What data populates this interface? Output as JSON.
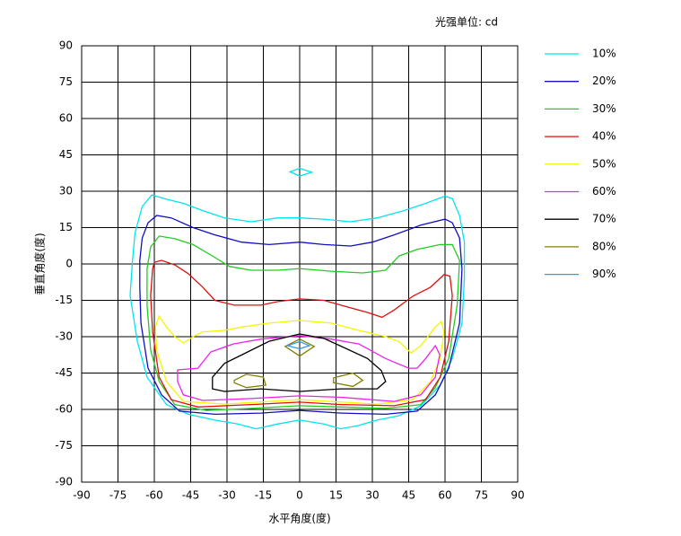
{
  "chart_data": {
    "type": "contour",
    "title": "光强单位: cd",
    "xlabel": "水平角度(度)",
    "ylabel": "垂直角度(度)",
    "xlim": [
      -90,
      90
    ],
    "ylim": [
      -90,
      90
    ],
    "xticks": [
      -90,
      -75,
      -60,
      -45,
      -30,
      -15,
      0,
      15,
      30,
      45,
      60,
      75,
      90
    ],
    "yticks": [
      -90,
      -75,
      -60,
      -45,
      -30,
      -15,
      0,
      15,
      30,
      45,
      60,
      75,
      90
    ],
    "grid": true,
    "legend": "right",
    "series": [
      {
        "name": "10%",
        "color": "#00e5ee",
        "x": [
          -69,
          -68,
          -65,
          -61,
          -55,
          -48,
          -40,
          -31,
          -20,
          -9,
          0,
          10,
          21,
          32,
          43,
          52,
          60,
          63,
          66,
          68,
          68,
          67,
          63,
          58,
          50,
          41,
          32,
          24,
          17,
          10,
          0,
          -9,
          -18,
          -25.5,
          -35,
          -46,
          -55,
          -63,
          -67,
          -70,
          null,
          -4,
          0,
          5,
          0
        ],
        "values": [
          1.5,
          12.6,
          23.7,
          28.5,
          26.7,
          25,
          22,
          19,
          17.4,
          19,
          19,
          18.5,
          17.4,
          19,
          22,
          25,
          28,
          27,
          20,
          9,
          -6,
          -24.4,
          -39,
          -50,
          -58.5,
          -62.6,
          -64.4,
          -66.7,
          -68,
          -66,
          -64.4,
          -66,
          -68,
          -66,
          -64.4,
          -62,
          -58,
          -46.7,
          -32,
          -13,
          null,
          38,
          39.5,
          37.8,
          36.3
        ]
      },
      {
        "name": "20%",
        "color": "#1010c0",
        "x": [
          -66,
          -65,
          -62.6,
          -59,
          -53,
          -44,
          -35,
          -24,
          -12.6,
          0,
          10,
          21,
          30,
          39,
          50,
          60,
          63,
          66,
          67,
          66,
          61.5,
          56,
          48.5,
          35.5,
          17,
          0,
          -16,
          -35,
          -49.6,
          -57,
          -62.6,
          -65.5,
          -66
        ],
        "values": [
          1.5,
          10.7,
          17,
          20,
          19,
          15,
          12,
          9,
          8,
          9,
          8,
          7.4,
          9,
          12,
          16,
          18.5,
          17,
          10.7,
          -2,
          -24.4,
          -43,
          -54,
          -60.7,
          -62,
          -61.5,
          -60.4,
          -61.5,
          -62,
          -60.7,
          -54,
          -43,
          -24.4,
          -9.6
        ]
      },
      {
        "name": "30%",
        "color": "#22cc22",
        "x": [
          -63,
          -61.5,
          -58,
          -51.5,
          -44,
          -36.7,
          -29,
          -20,
          -9,
          0,
          13,
          26,
          35.5,
          41,
          48.5,
          58,
          63,
          66,
          65,
          61.5,
          56,
          50,
          35.5,
          17,
          0,
          -20,
          -38.5,
          -51.5,
          -58,
          -61.5,
          -63
        ],
        "values": [
          -2,
          7,
          11.5,
          10.4,
          8,
          3.7,
          -1,
          -2.6,
          -2.6,
          -1.9,
          -3,
          -3.7,
          -2.6,
          3.3,
          6,
          8,
          8,
          1.5,
          -17,
          -39,
          -51,
          -58,
          -59.6,
          -59,
          -58.5,
          -59.6,
          -60.4,
          -58,
          -48.5,
          -35.5,
          -17
        ]
      },
      {
        "name": "40%",
        "color": "#dd1111",
        "x": [
          -60.7,
          -60,
          -57,
          -51.5,
          -46,
          -40,
          -35,
          -27,
          -16,
          -9,
          0,
          10,
          17,
          28,
          34,
          39,
          46.7,
          54,
          59.6,
          62,
          63,
          61.5,
          58,
          52,
          39,
          17,
          0,
          -20,
          -42,
          -53,
          -58,
          -60.7,
          -61.5
        ],
        "values": [
          -2,
          0.7,
          1.5,
          -0.4,
          -4,
          -9.6,
          -15,
          -17,
          -17,
          -15.5,
          -14.4,
          -15,
          -17,
          -20,
          -22,
          -19,
          -13.3,
          -9.6,
          -4.4,
          -5,
          -13,
          -32,
          -46.7,
          -56,
          -58.5,
          -58,
          -57,
          -58,
          -59,
          -56,
          -46.7,
          -28,
          -13
        ]
      },
      {
        "name": "50%",
        "color": "#f5f500",
        "x": [
          -58,
          -55,
          -51.5,
          -48,
          -44,
          -40,
          -31,
          -23.7,
          -12.6,
          0,
          13,
          24.4,
          35.5,
          41,
          46,
          50,
          56,
          58.5,
          59.6,
          58,
          54,
          46.7,
          32,
          0,
          -31,
          -48,
          -55,
          -59,
          -59.6
        ],
        "values": [
          -21.5,
          -26,
          -30,
          -32.6,
          -30,
          -28,
          -27.4,
          -26,
          -24.4,
          -23.3,
          -24.4,
          -27.4,
          -30,
          -32,
          -36.7,
          -33.7,
          -26,
          -23.7,
          -28,
          -39,
          -48.5,
          -56,
          -57.8,
          -56,
          -57.8,
          -56.7,
          -48.5,
          -35.5,
          -26
        ]
      },
      {
        "name": "60%",
        "color": "#ee22ee",
        "x": [
          -50.4,
          -42,
          -36.7,
          -27.4,
          -16,
          0,
          13,
          24.4,
          35.5,
          45,
          48.5,
          52,
          56,
          57.8,
          56,
          50,
          39,
          17,
          0,
          -20,
          -40,
          -48,
          -50.4
        ],
        "values": [
          -43.7,
          -43,
          -36.3,
          -33,
          -31,
          -29.6,
          -31,
          -33,
          -39,
          -43,
          -43,
          -39,
          -33.7,
          -37.4,
          -46.7,
          -54,
          -56.7,
          -55,
          -54.4,
          -55.5,
          -56.3,
          -54,
          -48.5
        ]
      },
      {
        "name": "70%",
        "color": "#000000",
        "x": [
          -36,
          -36,
          -31,
          -23.7,
          -12.6,
          0,
          10,
          19,
          28,
          33.7,
          35.5,
          32,
          17,
          0,
          -16,
          -31
        ],
        "values": [
          -51.5,
          -46.7,
          -41,
          -37.4,
          -31.9,
          -28.9,
          -30.7,
          -34.8,
          -39,
          -44,
          -48.5,
          -51.5,
          -51.5,
          -52.6,
          -51.5,
          -52.6
        ]
      },
      {
        "name": "80%",
        "color": "#808000",
        "x": [
          0,
          6,
          0,
          -6,
          null,
          -27,
          -22,
          -15,
          -14,
          -22,
          -27,
          null,
          14,
          22,
          26,
          22,
          14
        ],
        "values": [
          -31,
          -34,
          -38,
          -34,
          null,
          -48,
          -45.5,
          -46.7,
          -50,
          -51,
          -49,
          null,
          -47,
          -45,
          -48,
          -50.5,
          -49
        ]
      },
      {
        "name": "90%",
        "color": "#3399ee",
        "x": [
          -5,
          0,
          4,
          0
        ],
        "values": [
          -33.7,
          -32,
          -33.7,
          -35
        ]
      }
    ]
  }
}
